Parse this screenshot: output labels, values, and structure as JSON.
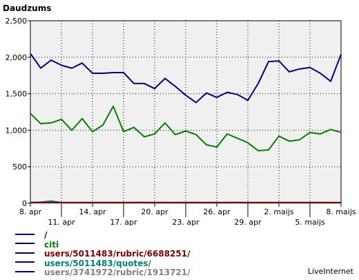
{
  "chart_data": {
    "type": "line",
    "ylabel": "Daudzums",
    "ylim": [
      0,
      2500
    ],
    "yticks": [
      "0",
      "500",
      "1,000",
      "1,500",
      "2,000",
      "2,500"
    ],
    "grid": true,
    "x": [
      "8. apr",
      "9. apr",
      "10. apr",
      "11. apr",
      "12. apr",
      "13. apr",
      "14. apr",
      "15. apr",
      "16. apr",
      "17. apr",
      "18. apr",
      "19. apr",
      "20. apr",
      "21. apr",
      "22. apr",
      "23. apr",
      "24. apr",
      "25. apr",
      "26. apr",
      "27. apr",
      "28. apr",
      "29. apr",
      "30. apr",
      "1. maijs",
      "2. maijs",
      "3. maijs",
      "4. maijs",
      "5. maijs",
      "6. maijs",
      "7. maijs",
      "8. maijs"
    ],
    "xtick_labels": [
      {
        "index": 0,
        "label": "8. apr",
        "row": 1
      },
      {
        "index": 3,
        "label": "11. apr",
        "row": 2
      },
      {
        "index": 6,
        "label": "14. apr",
        "row": 1
      },
      {
        "index": 9,
        "label": "17. apr",
        "row": 2
      },
      {
        "index": 12,
        "label": "20. apr",
        "row": 1
      },
      {
        "index": 15,
        "label": "23. apr",
        "row": 2
      },
      {
        "index": 18,
        "label": "26. apr",
        "row": 1
      },
      {
        "index": 21,
        "label": "29. apr",
        "row": 2
      },
      {
        "index": 24,
        "label": "2. maijs",
        "row": 1
      },
      {
        "index": 27,
        "label": "5. maijs",
        "row": 2
      },
      {
        "index": 30,
        "label": "8. maijs",
        "row": 1
      }
    ],
    "series": [
      {
        "name": "/",
        "color": "#000080",
        "values": [
          2050,
          1850,
          1960,
          1890,
          1850,
          1920,
          1780,
          1780,
          1790,
          1790,
          1640,
          1640,
          1570,
          1710,
          1600,
          1480,
          1380,
          1510,
          1450,
          1520,
          1490,
          1410,
          1640,
          1940,
          1950,
          1800,
          1840,
          1860,
          1780,
          1670,
          2040
        ]
      },
      {
        "name": "citi",
        "color": "#008000",
        "values": [
          1230,
          1090,
          1100,
          1150,
          1000,
          1160,
          980,
          1070,
          1330,
          980,
          1040,
          910,
          950,
          1100,
          940,
          990,
          940,
          800,
          770,
          950,
          890,
          830,
          720,
          730,
          920,
          850,
          870,
          970,
          950,
          1010,
          970
        ]
      },
      {
        "name": "users/5011483/rubric/6688251/",
        "color": "#800000",
        "values": [
          10,
          10,
          10,
          10,
          10,
          10,
          10,
          10,
          10,
          10,
          10,
          10,
          10,
          10,
          10,
          10,
          10,
          10,
          10,
          10,
          10,
          10,
          10,
          10,
          10,
          10,
          10,
          10,
          10,
          10,
          10
        ]
      },
      {
        "name": "users/5011483/quotes/",
        "color": "#008080",
        "values": [
          10,
          15,
          30,
          10,
          5,
          5,
          5,
          5,
          5,
          5,
          10,
          10,
          5,
          10,
          5,
          5,
          10,
          5,
          5,
          10,
          10,
          5,
          5,
          5,
          10,
          5,
          5,
          5,
          5,
          5,
          5
        ]
      },
      {
        "name": "users/3741972/rubric/1913721/",
        "color": "#808080",
        "values": [
          5,
          5,
          5,
          5,
          5,
          5,
          5,
          5,
          5,
          5,
          5,
          5,
          5,
          5,
          5,
          5,
          5,
          5,
          5,
          5,
          5,
          5,
          5,
          5,
          5,
          5,
          5,
          5,
          5,
          5,
          5
        ]
      }
    ]
  },
  "footer": {
    "watermark": "LiveInternet"
  }
}
